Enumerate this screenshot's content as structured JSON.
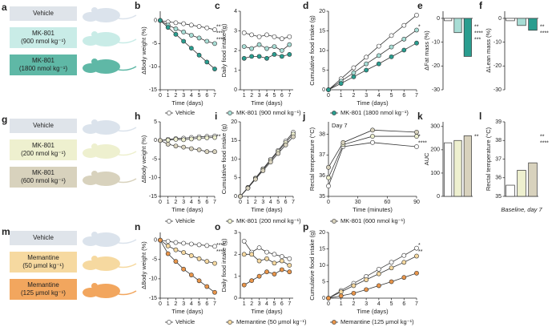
{
  "rows": [
    {
      "letter": "a",
      "boxes": [
        [
          "Vehicle"
        ],
        [
          "MK-801",
          "(900 nmol kg⁻¹)"
        ],
        [
          "MK-801",
          "(1800 nmol kg⁻¹)"
        ]
      ],
      "colors": [
        "#dfe4ea",
        "#c9ece7",
        "#5fb8a6"
      ]
    },
    {
      "letter": "g",
      "boxes": [
        [
          "Vehicle"
        ],
        [
          "MK-801",
          "(200 nmol kg⁻¹)"
        ],
        [
          "MK-801",
          "(600 nmol kg⁻¹)"
        ]
      ],
      "colors": [
        "#dfe4ea",
        "#eef0cf",
        "#d8d2bd"
      ]
    },
    {
      "letter": "m",
      "boxes": [
        [
          "Vehicle"
        ],
        [
          "Memantine",
          "(50 μmol kg⁻¹)"
        ],
        [
          "Memantine",
          "(125 μmol kg⁻¹)"
        ]
      ],
      "colors": [
        "#dfe4ea",
        "#f6d9a0",
        "#f2a65e"
      ]
    }
  ],
  "chart_data": [
    {
      "type": "line",
      "letter": "b",
      "y_label": "ΔBody weight (%)",
      "x_label": "Time (days)",
      "x": [
        0,
        1,
        2,
        3,
        4,
        5,
        6,
        7
      ],
      "xlim": [
        0,
        7
      ],
      "xticks": [
        0,
        1,
        2,
        3,
        4,
        5,
        6,
        7
      ],
      "ylim": [
        -15,
        2
      ],
      "yticks": [
        0,
        -5,
        -10,
        -15
      ],
      "annotations": [
        "**",
        "****",
        "****"
      ],
      "series": [
        {
          "name": "Vehicle",
          "color": "#ffffff",
          "values": [
            0,
            -0.3,
            -0.5,
            -0.7,
            -1,
            -1.3,
            -1.6,
            -2
          ]
        },
        {
          "name": "MK-801 (900 nmol kg⁻¹)",
          "color": "#a8ddd5",
          "values": [
            0,
            -1,
            -1.8,
            -2.5,
            -3.2,
            -3.8,
            -4.5,
            -5
          ]
        },
        {
          "name": "MK-801 (1800 nmol kg⁻¹)",
          "color": "#2a9d8f",
          "values": [
            0,
            -1.5,
            -3,
            -4.5,
            -6,
            -7.5,
            -9,
            -10.5
          ]
        }
      ]
    },
    {
      "type": "line",
      "letter": "c",
      "y_label": "Daily food intake (g)",
      "x_label": "Time (days)",
      "x": [
        1,
        2,
        3,
        4,
        5,
        6,
        7
      ],
      "xlim": [
        0.5,
        7.5
      ],
      "xticks": [
        1,
        2,
        3,
        4,
        5,
        6,
        7
      ],
      "ylim": [
        0,
        4
      ],
      "yticks": [
        0,
        1,
        2,
        3,
        4
      ],
      "annotations": [],
      "series": [
        {
          "name": "Vehicle",
          "color": "#ffffff",
          "values": [
            2.9,
            2.8,
            2.7,
            2.8,
            2.7,
            2.6,
            2.7
          ]
        },
        {
          "name": "MK-801 (900 nmol kg⁻¹)",
          "color": "#a8ddd5",
          "values": [
            2.2,
            2.1,
            2.3,
            2.1,
            2.2,
            2.0,
            2.3
          ]
        },
        {
          "name": "MK-801 (1800 nmol kg⁻¹)",
          "color": "#2a9d8f",
          "values": [
            1.6,
            1.7,
            1.7,
            1.6,
            1.8,
            1.7,
            1.8
          ]
        }
      ]
    },
    {
      "type": "line",
      "letter": "d",
      "y_label": "Cumulative food intake (g)",
      "x_label": "Time (days)",
      "x": [
        0,
        1,
        2,
        3,
        4,
        5,
        6,
        7
      ],
      "xlim": [
        0,
        7
      ],
      "xticks": [
        0,
        1,
        2,
        3,
        4,
        5,
        6,
        7
      ],
      "ylim": [
        0,
        20
      ],
      "yticks": [
        0,
        5,
        10,
        15,
        20
      ],
      "annotations": [
        "*"
      ],
      "series": [
        {
          "name": "Vehicle",
          "color": "#ffffff",
          "values": [
            0,
            2.8,
            5.6,
            8.3,
            11.1,
            13.8,
            16.4,
            19
          ]
        },
        {
          "name": "MK-801 (900 nmol kg⁻¹)",
          "color": "#a8ddd5",
          "values": [
            0,
            2.2,
            4.3,
            6.6,
            8.7,
            10.9,
            12.9,
            15.2
          ]
        },
        {
          "name": "MK-801 (1800 nmol kg⁻¹)",
          "color": "#2a9d8f",
          "values": [
            0,
            1.6,
            3.3,
            5,
            6.6,
            8.4,
            10.1,
            11.9
          ]
        }
      ]
    },
    {
      "type": "bar",
      "letter": "e",
      "y_label": "ΔFat mass (%)",
      "categories": [
        null,
        null,
        null
      ],
      "values": [
        -1,
        -6,
        -16
      ],
      "colors": [
        "#ffffff",
        "#a8ddd5",
        "#2a9d8f"
      ],
      "ylim": [
        -30,
        3
      ],
      "yticks": [
        0,
        -10,
        -20,
        -30
      ],
      "annotations": [
        "**",
        "****",
        "***"
      ]
    },
    {
      "type": "bar",
      "letter": "f",
      "y_label": "ΔLean mass (%)",
      "categories": [
        null,
        null,
        null
      ],
      "values": [
        -1,
        -3,
        -5
      ],
      "colors": [
        "#ffffff",
        "#a8ddd5",
        "#2a9d8f"
      ],
      "ylim": [
        -30,
        3
      ],
      "yticks": [
        0,
        -10,
        -20,
        -30
      ],
      "annotations": [
        "**",
        "****"
      ]
    },
    {
      "type": "line",
      "letter": "h",
      "y_label": "ΔBody weight (%)",
      "x_label": "Time (days)",
      "x": [
        0,
        1,
        2,
        3,
        4,
        5,
        6,
        7
      ],
      "xlim": [
        0,
        7
      ],
      "xticks": [
        0,
        1,
        2,
        3,
        4,
        5,
        6,
        7
      ],
      "ylim": [
        -15,
        5
      ],
      "yticks": [
        5,
        0,
        -5,
        -10,
        -15
      ],
      "annotations": [
        "**"
      ],
      "series": [
        {
          "name": "Vehicle",
          "color": "#ffffff",
          "values": [
            0,
            0.3,
            0.5,
            0.6,
            0.8,
            1,
            1.1,
            1.2
          ]
        },
        {
          "name": "MK-801 (200 nmol kg⁻¹)",
          "color": "#eef0cf",
          "values": [
            0,
            0.1,
            0.3,
            0.2,
            0.4,
            0.6,
            0.7,
            0.8
          ]
        },
        {
          "name": "MK-801 (600 nmol kg⁻¹)",
          "color": "#d8d2bd",
          "values": [
            0,
            -1,
            -1.5,
            -1.8,
            -2.2,
            -2.5,
            -3,
            -3
          ]
        }
      ]
    },
    {
      "type": "line",
      "letter": "i",
      "y_label": "Cumulative food intake (g)",
      "x_label": "Time (days)",
      "x": [
        0,
        1,
        2,
        3,
        4,
        5,
        6,
        7
      ],
      "xlim": [
        0,
        7
      ],
      "xticks": [
        0,
        1,
        2,
        3,
        4,
        5,
        6,
        7
      ],
      "ylim": [
        0,
        20
      ],
      "yticks": [
        0,
        5,
        10,
        15,
        20
      ],
      "annotations": [],
      "series": [
        {
          "name": "Vehicle",
          "color": "#ffffff",
          "values": [
            0,
            2.4,
            4.9,
            7.4,
            9.9,
            12.3,
            14.8,
            17.2
          ]
        },
        {
          "name": "MK-801 (200 nmol kg⁻¹)",
          "color": "#eef0cf",
          "values": [
            0,
            2.3,
            4.8,
            7.2,
            9.6,
            12,
            14.4,
            16.7
          ]
        },
        {
          "name": "MK-801 (600 nmol kg⁻¹)",
          "color": "#d8d2bd",
          "values": [
            0,
            2.2,
            4.6,
            6.9,
            9.2,
            11.5,
            13.8,
            16
          ]
        }
      ]
    },
    {
      "type": "line",
      "letter": "j",
      "y_label": "Rectal temperature (°C)",
      "x_label": "Time (minutes)",
      "note": "Day 7",
      "x": [
        0,
        15,
        45,
        90
      ],
      "xlim": [
        0,
        90
      ],
      "xticks": [
        0,
        30,
        60,
        90
      ],
      "ylim": [
        35,
        38.6
      ],
      "yticks": [
        35,
        36,
        37,
        38
      ],
      "annotations": [
        "*",
        "****"
      ],
      "series": [
        {
          "name": "Vehicle",
          "color": "#ffffff",
          "values": [
            35.5,
            37.4,
            37.6,
            37.4
          ]
        },
        {
          "name": "MK-801 (200 nmol kg⁻¹)",
          "color": "#eef0cf",
          "values": [
            35.9,
            37.5,
            37.9,
            37.9
          ]
        },
        {
          "name": "MK-801 (600 nmol kg⁻¹)",
          "color": "#d8d2bd",
          "values": [
            36.4,
            37.6,
            38.2,
            38.1
          ]
        }
      ]
    },
    {
      "type": "bar",
      "letter": "k",
      "y_label": "AUC",
      "categories": [
        null,
        null,
        null
      ],
      "values": [
        230,
        240,
        260
      ],
      "colors": [
        "#ffffff",
        "#eef0cf",
        "#d8d2bd"
      ],
      "ylim": [
        0,
        320
      ],
      "yticks": [
        0,
        100,
        200,
        300
      ],
      "annotations": [
        "**"
      ]
    },
    {
      "type": "bar",
      "letter": "l",
      "y_label": "Rectal temperature (°C)",
      "x_label": "Baseline, day 7",
      "categories": [
        null,
        null,
        null
      ],
      "values": [
        35.6,
        36.4,
        36.8
      ],
      "colors": [
        "#ffffff",
        "#eef0cf",
        "#d8d2bd"
      ],
      "ylim": [
        35,
        39
      ],
      "yticks": [
        35,
        36,
        37,
        38,
        39
      ],
      "annotations": [
        "**",
        "****"
      ]
    },
    {
      "type": "line",
      "letter": "n",
      "y_label": "ΔBody weight (%)",
      "x_label": "Time (days)",
      "x": [
        0,
        1,
        2,
        3,
        4,
        5,
        6,
        7
      ],
      "xlim": [
        0,
        7
      ],
      "xticks": [
        0,
        1,
        2,
        3,
        4,
        5,
        6,
        7
      ],
      "ylim": [
        -15,
        2
      ],
      "yticks": [
        0,
        -5,
        -10,
        -15
      ],
      "annotations": [
        "****",
        "****"
      ],
      "series": [
        {
          "name": "Vehicle",
          "color": "#ffffff",
          "values": [
            0,
            -0.3,
            -0.6,
            -0.8,
            -1,
            -1.2,
            -1.4,
            -1.6
          ]
        },
        {
          "name": "Memantine (50 μmol kg⁻¹)",
          "color": "#f6d9a0",
          "values": [
            0,
            -1.5,
            -2.5,
            -3.2,
            -4,
            -4.8,
            -5.5,
            -6
          ]
        },
        {
          "name": "Memantine (125 μmol kg⁻¹)",
          "color": "#e8954a",
          "values": [
            0,
            -3.5,
            -5.5,
            -7.5,
            -9,
            -10.5,
            -12,
            -13.5
          ]
        }
      ]
    },
    {
      "type": "line",
      "letter": "o",
      "y_label": "Daily food intake (g)",
      "x_label": "Time (days)",
      "x": [
        1,
        2,
        3,
        4,
        5,
        6,
        7
      ],
      "xlim": [
        0.5,
        7.5
      ],
      "xticks": [
        1,
        2,
        3,
        4,
        5,
        6,
        7
      ],
      "ylim": [
        0,
        3
      ],
      "yticks": [
        0,
        1,
        2,
        3
      ],
      "annotations": [],
      "series": [
        {
          "name": "Vehicle",
          "color": "#ffffff",
          "values": [
            2.6,
            2.1,
            2.3,
            2.1,
            2.0,
            1.9,
            1.8
          ]
        },
        {
          "name": "Memantine (50 μmol kg⁻¹)",
          "color": "#f6d9a0",
          "values": [
            2.0,
            2.0,
            1.7,
            1.8,
            1.6,
            1.7,
            1.5
          ]
        },
        {
          "name": "Memantine (125 μmol kg⁻¹)",
          "color": "#e8954a",
          "values": [
            0.6,
            0.8,
            1.0,
            1.2,
            1.1,
            1.3,
            1.2
          ]
        }
      ]
    },
    {
      "type": "line",
      "letter": "p",
      "y_label": "Cumulative food intake (g)",
      "x_label": "Time (days)",
      "x": [
        0,
        1,
        2,
        3,
        4,
        5,
        6,
        7
      ],
      "xlim": [
        0,
        7
      ],
      "xticks": [
        0,
        1,
        2,
        3,
        4,
        5,
        6,
        7
      ],
      "ylim": [
        0,
        20
      ],
      "yticks": [
        0,
        5,
        10,
        15,
        20
      ],
      "annotations": [
        "*",
        "**"
      ],
      "series": [
        {
          "name": "Vehicle",
          "color": "#ffffff",
          "values": [
            0,
            2.3,
            4.5,
            6.6,
            8.8,
            10.9,
            13,
            15.2
          ]
        },
        {
          "name": "Memantine (50 μmol kg⁻¹)",
          "color": "#f6d9a0",
          "values": [
            0,
            1.9,
            3.8,
            5.6,
            7.4,
            9.2,
            10.9,
            12.8
          ]
        },
        {
          "name": "Memantine (125 μmol kg⁻¹)",
          "color": "#e8954a",
          "values": [
            0,
            0.7,
            1.5,
            2.6,
            3.8,
            5.0,
            6.3,
            7.6
          ]
        }
      ]
    }
  ]
}
